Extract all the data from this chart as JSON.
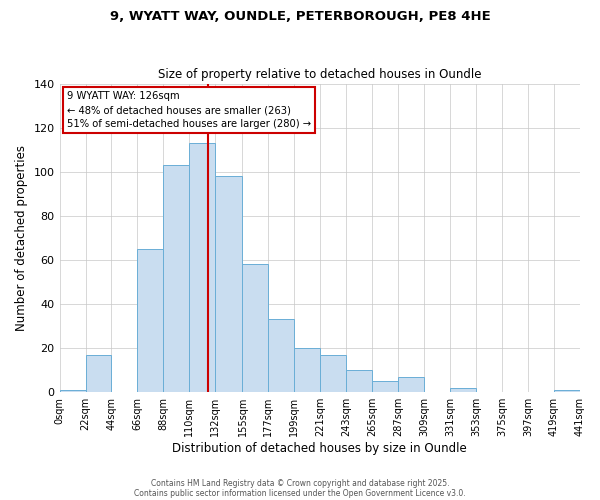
{
  "title": "9, WYATT WAY, OUNDLE, PETERBOROUGH, PE8 4HE",
  "subtitle": "Size of property relative to detached houses in Oundle",
  "xlabel": "Distribution of detached houses by size in Oundle",
  "ylabel": "Number of detached properties",
  "bin_edges": [
    0,
    22,
    44,
    66,
    88,
    110,
    132,
    155,
    177,
    199,
    221,
    243,
    265,
    287,
    309,
    331,
    353,
    375,
    397,
    419,
    441
  ],
  "bin_labels": [
    "0sqm",
    "22sqm",
    "44sqm",
    "66sqm",
    "88sqm",
    "110sqm",
    "132sqm",
    "155sqm",
    "177sqm",
    "199sqm",
    "221sqm",
    "243sqm",
    "265sqm",
    "287sqm",
    "309sqm",
    "331sqm",
    "353sqm",
    "375sqm",
    "397sqm",
    "419sqm",
    "441sqm"
  ],
  "counts": [
    1,
    17,
    0,
    65,
    103,
    113,
    98,
    58,
    33,
    20,
    17,
    10,
    5,
    7,
    0,
    2,
    0,
    0,
    0,
    1
  ],
  "bar_color": "#c9ddf0",
  "bar_edge_color": "#6aaed6",
  "reference_line_x": 126,
  "reference_line_color": "#cc0000",
  "ylim": [
    0,
    140
  ],
  "yticks": [
    0,
    20,
    40,
    60,
    80,
    100,
    120,
    140
  ],
  "annotation_line1": "9 WYATT WAY: 126sqm",
  "annotation_line2": "← 48% of detached houses are smaller (263)",
  "annotation_line3": "51% of semi-detached houses are larger (280) →",
  "footer1": "Contains HM Land Registry data © Crown copyright and database right 2025.",
  "footer2": "Contains public sector information licensed under the Open Government Licence v3.0.",
  "background_color": "#ffffff",
  "grid_color": "#c8c8c8",
  "title_fontsize": 9.5,
  "subtitle_fontsize": 8.5
}
